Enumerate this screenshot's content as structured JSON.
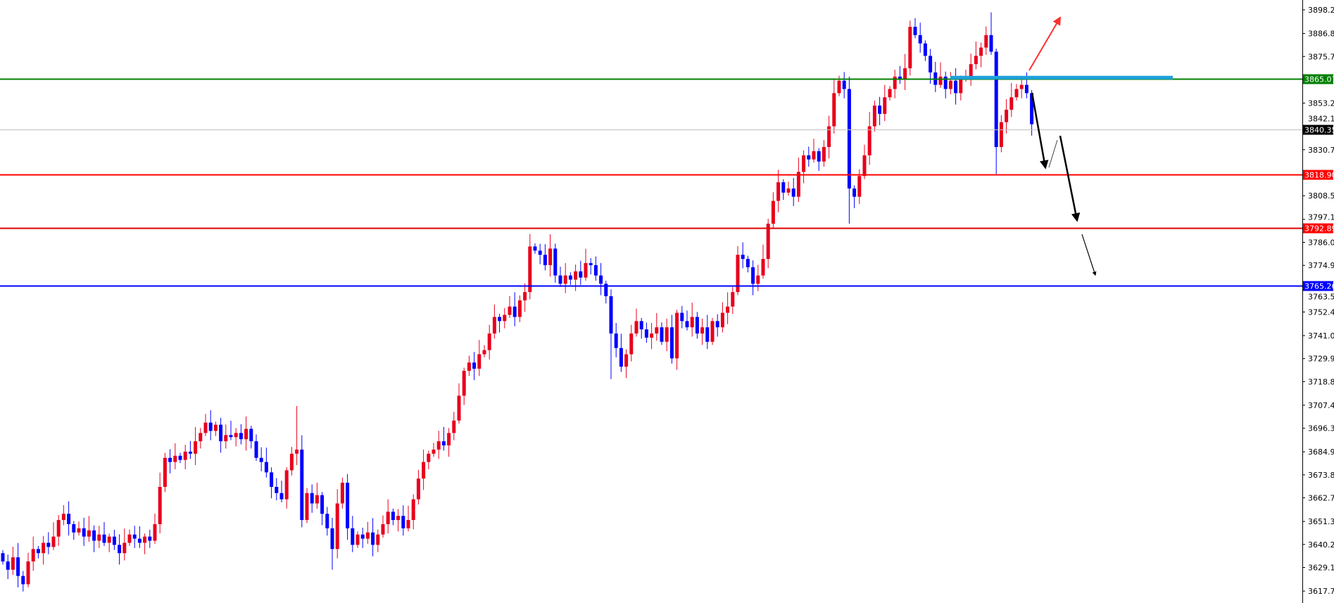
{
  "chart_data": {
    "type": "candlestick",
    "title": "",
    "xlabel": "",
    "ylabel": "",
    "ylim": [
      3612,
      3902
    ],
    "grid": false,
    "colors": {
      "bull": "#e8001c",
      "bear": "#0000ff",
      "axis": "#000000"
    },
    "y_ticks": [
      "3898.20",
      "3886.80",
      "3875.70",
      "3853.20",
      "3842.10",
      "3830.70",
      "3808.50",
      "3797.10",
      "3786.00",
      "3774.90",
      "3763.50",
      "3752.40",
      "3741.00",
      "3729.90",
      "3718.80",
      "3707.40",
      "3696.30",
      "3684.90",
      "3673.80",
      "3662.70",
      "3651.30",
      "3640.20",
      "3629.10",
      "3617.70"
    ],
    "start_open": 3636,
    "closes": [
      3632,
      3628,
      3634,
      3625,
      3621,
      3632,
      3638,
      3636,
      3641,
      3639,
      3644,
      3652,
      3655,
      3650,
      3646,
      3648,
      3644,
      3647,
      3642,
      3645,
      3641,
      3644,
      3640,
      3636,
      3641,
      3645,
      3643,
      3641,
      3644,
      3642,
      3650,
      3668,
      3682,
      3680,
      3683,
      3681,
      3685,
      3684,
      3690,
      3694,
      3699,
      3695,
      3698,
      3690,
      3693,
      3692,
      3694,
      3691,
      3696,
      3690,
      3682,
      3680,
      3675,
      3668,
      3665,
      3662,
      3676,
      3684,
      3686,
      3652,
      3665,
      3660,
      3664,
      3655,
      3648,
      3638,
      3660,
      3670,
      3648,
      3640,
      3645,
      3643,
      3646,
      3640,
      3645,
      3650,
      3656,
      3652,
      3654,
      3648,
      3652,
      3662,
      3672,
      3680,
      3684,
      3686,
      3690,
      3688,
      3694,
      3700,
      3712,
      3724,
      3728,
      3725,
      3732,
      3734,
      3742,
      3750,
      3748,
      3751,
      3755,
      3750,
      3758,
      3762,
      3784,
      3782,
      3780,
      3775,
      3783,
      3770,
      3766,
      3770,
      3768,
      3772,
      3769,
      3776,
      3775,
      3770,
      3766,
      3760,
      3742,
      3735,
      3726,
      3732,
      3742,
      3748,
      3744,
      3740,
      3742,
      3745,
      3738,
      3745,
      3730,
      3752,
      3748,
      3745,
      3750,
      3742,
      3745,
      3738,
      3748,
      3745,
      3752,
      3755,
      3762,
      3780,
      3778,
      3774,
      3766,
      3770,
      3778,
      3795,
      3806,
      3815,
      3810,
      3812,
      3808,
      3820,
      3828,
      3826,
      3830,
      3825,
      3832,
      3842,
      3858,
      3864,
      3860,
      3812,
      3808,
      3818,
      3828,
      3842,
      3852,
      3848,
      3856,
      3860,
      3866,
      3865,
      3870,
      3890,
      3886,
      3882,
      3876,
      3868,
      3862,
      3866,
      3860,
      3864,
      3858,
      3865,
      3866,
      3872,
      3876,
      3880,
      3886,
      3878,
      3832,
      3844,
      3850,
      3856,
      3860,
      3862,
      3858,
      3843
    ],
    "wick_extremes": [
      {
        "index": 58,
        "high": 3707
      },
      {
        "index": 65,
        "low": 3628
      },
      {
        "index": 120,
        "low": 3720
      },
      {
        "index": 167,
        "low": 3795
      },
      {
        "index": 179,
        "high": 3893
      },
      {
        "index": 195,
        "high": 3897
      },
      {
        "index": 196,
        "low": 3819
      }
    ],
    "levels": [
      {
        "price": "3865.07",
        "color": "#008000",
        "label_bg": "#008000",
        "style": "solid"
      },
      {
        "price": "3840.35",
        "color": "#c0c0c0",
        "label_bg": "#000000",
        "style": "current-price"
      },
      {
        "price": "3818.90",
        "color": "#ff0000",
        "label_bg": "#ff0000",
        "style": "solid"
      },
      {
        "price": "3792.89",
        "color": "#e00000",
        "label_bg": "#ff0000",
        "style": "solid"
      },
      {
        "price": "3765.26",
        "color": "#0000ff",
        "label_bg": "#0000ff",
        "style": "solid"
      }
    ],
    "annotations": {
      "zone_line": {
        "price": 3865.5,
        "color": "#1ea0dc"
      },
      "up_arrow_color": "#ff3030",
      "down_arrow_color": "#000000"
    }
  }
}
